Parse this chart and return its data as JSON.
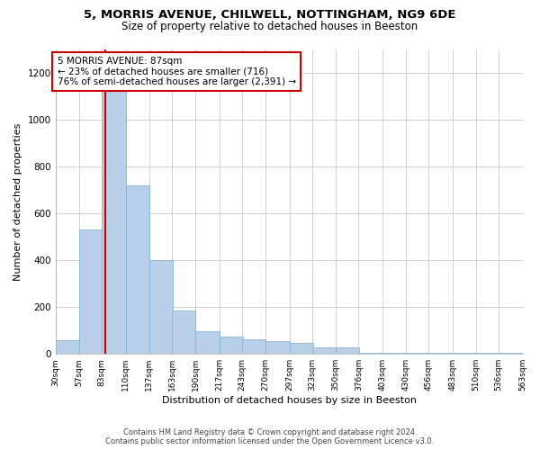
{
  "title_line1": "5, MORRIS AVENUE, CHILWELL, NOTTINGHAM, NG9 6DE",
  "title_line2": "Size of property relative to detached houses in Beeston",
  "xlabel": "Distribution of detached houses by size in Beeston",
  "ylabel": "Number of detached properties",
  "footer_line1": "Contains HM Land Registry data © Crown copyright and database right 2024.",
  "footer_line2": "Contains public sector information licensed under the Open Government Licence v3.0.",
  "annotation_line1": "5 MORRIS AVENUE: 87sqm",
  "annotation_line2": "← 23% of detached houses are smaller (716)",
  "annotation_line3": "76% of semi-detached houses are larger (2,391) →",
  "property_size": 87,
  "bar_color": "#b8d0e8",
  "bar_edge_color": "#7aafd4",
  "vline_color": "#cc0000",
  "annotation_box_color": "#cc0000",
  "background_color": "#ffffff",
  "grid_color": "#d0d0d0",
  "bin_edges": [
    30,
    57,
    83,
    110,
    137,
    163,
    190,
    217,
    243,
    270,
    297,
    323,
    350,
    376,
    403,
    430,
    456,
    483,
    510,
    536,
    563
  ],
  "bin_labels": [
    "30sqm",
    "57sqm",
    "83sqm",
    "110sqm",
    "137sqm",
    "163sqm",
    "190sqm",
    "217sqm",
    "243sqm",
    "270sqm",
    "297sqm",
    "323sqm",
    "350sqm",
    "376sqm",
    "403sqm",
    "430sqm",
    "456sqm",
    "483sqm",
    "510sqm",
    "536sqm",
    "563sqm"
  ],
  "bar_heights": [
    60,
    530,
    1200,
    720,
    400,
    185,
    95,
    72,
    62,
    55,
    48,
    28,
    28,
    5,
    5,
    5,
    5,
    5,
    5,
    5,
    0
  ],
  "ylim": [
    0,
    1300
  ],
  "yticks": [
    0,
    200,
    400,
    600,
    800,
    1000,
    1200
  ]
}
